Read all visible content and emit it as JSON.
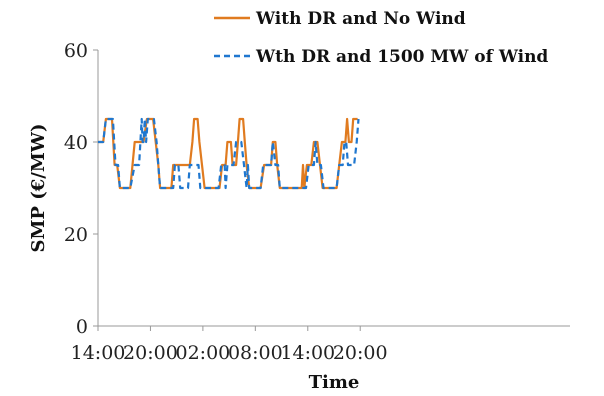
{
  "chart_data": {
    "type": "line",
    "title": "",
    "xlabel": "Time",
    "ylabel": "SMP (€/MW)",
    "xlim": [
      0,
      54
    ],
    "ylim": [
      0,
      60
    ],
    "x_ticks": [
      {
        "x": 0,
        "label": "14:00"
      },
      {
        "x": 6,
        "label": "20:00"
      },
      {
        "x": 12,
        "label": "02:00"
      },
      {
        "x": 18,
        "label": "08:00"
      },
      {
        "x": 24,
        "label": "14:00"
      },
      {
        "x": 30,
        "label": "20:00"
      }
    ],
    "y_ticks": [
      0,
      20,
      40,
      60
    ],
    "grid": false,
    "legend_position": "top",
    "series": [
      {
        "name": "With DR and No Wind",
        "color": "#E07B20",
        "style": "solid",
        "points": [
          [
            0,
            40
          ],
          [
            0.6,
            40
          ],
          [
            0.9,
            45
          ],
          [
            1.6,
            45
          ],
          [
            1.9,
            35
          ],
          [
            2.2,
            35
          ],
          [
            2.5,
            30
          ],
          [
            3.7,
            30
          ],
          [
            4.2,
            40
          ],
          [
            5.2,
            40
          ],
          [
            5.6,
            45
          ],
          [
            6.3,
            45
          ],
          [
            6.6,
            40
          ],
          [
            6.9,
            35
          ],
          [
            7.1,
            30
          ],
          [
            8.4,
            30
          ],
          [
            8.6,
            35
          ],
          [
            10.5,
            35
          ],
          [
            10.8,
            40
          ],
          [
            11.0,
            45
          ],
          [
            11.4,
            45
          ],
          [
            11.6,
            40
          ],
          [
            11.9,
            35
          ],
          [
            12.2,
            30
          ],
          [
            13.9,
            30
          ],
          [
            14.2,
            35
          ],
          [
            14.6,
            35
          ],
          [
            14.8,
            40
          ],
          [
            15.2,
            40
          ],
          [
            15.4,
            35
          ],
          [
            15.8,
            35
          ],
          [
            16.0,
            40
          ],
          [
            16.2,
            45
          ],
          [
            16.6,
            45
          ],
          [
            16.8,
            40
          ],
          [
            17.0,
            35
          ],
          [
            17.3,
            30
          ],
          [
            18.6,
            30
          ],
          [
            19.0,
            35
          ],
          [
            19.8,
            35
          ],
          [
            20.0,
            40
          ],
          [
            20.3,
            40
          ],
          [
            20.5,
            35
          ],
          [
            20.8,
            30
          ],
          [
            23.3,
            30
          ],
          [
            23.45,
            35
          ],
          [
            23.6,
            30
          ],
          [
            23.9,
            35
          ],
          [
            24.4,
            35
          ],
          [
            24.7,
            40
          ],
          [
            25.1,
            40
          ],
          [
            25.4,
            35
          ],
          [
            25.7,
            30
          ],
          [
            27.3,
            30
          ],
          [
            27.6,
            35
          ],
          [
            27.9,
            40
          ],
          [
            28.3,
            40
          ],
          [
            28.5,
            45
          ],
          [
            28.7,
            40
          ],
          [
            29.0,
            40
          ],
          [
            29.2,
            45
          ],
          [
            29.7,
            45
          ]
        ]
      },
      {
        "name": "Wth DR and 1500 MW of Wind",
        "color": "#1F77CF",
        "style": "dashed",
        "points": [
          [
            0,
            40
          ],
          [
            0.6,
            40
          ],
          [
            0.9,
            45
          ],
          [
            1.7,
            45
          ],
          [
            2.0,
            35
          ],
          [
            2.3,
            35
          ],
          [
            2.5,
            30
          ],
          [
            3.7,
            30
          ],
          [
            4.2,
            35
          ],
          [
            4.7,
            35
          ],
          [
            4.85,
            40
          ],
          [
            5.0,
            45
          ],
          [
            5.1,
            40
          ],
          [
            5.2,
            40
          ],
          [
            5.35,
            45
          ],
          [
            5.5,
            40
          ],
          [
            5.7,
            45
          ],
          [
            6.4,
            45
          ],
          [
            6.7,
            40
          ],
          [
            6.9,
            35
          ],
          [
            7.1,
            30
          ],
          [
            8.6,
            30
          ],
          [
            8.8,
            35
          ],
          [
            9.2,
            35
          ],
          [
            9.4,
            30
          ],
          [
            10.3,
            30
          ],
          [
            10.5,
            35
          ],
          [
            11.5,
            35
          ],
          [
            11.7,
            30
          ],
          [
            13.8,
            30
          ],
          [
            14.1,
            35
          ],
          [
            14.5,
            35
          ],
          [
            14.6,
            30
          ],
          [
            14.8,
            35
          ],
          [
            15.5,
            35
          ],
          [
            15.8,
            40
          ],
          [
            16.4,
            40
          ],
          [
            16.7,
            35
          ],
          [
            17.0,
            30
          ],
          [
            17.15,
            35
          ],
          [
            17.3,
            30
          ],
          [
            18.6,
            30
          ],
          [
            18.9,
            35
          ],
          [
            19.8,
            35
          ],
          [
            20.0,
            40
          ],
          [
            20.3,
            35
          ],
          [
            20.6,
            35
          ],
          [
            20.8,
            30
          ],
          [
            23.8,
            30
          ],
          [
            24.1,
            35
          ],
          [
            24.7,
            35
          ],
          [
            24.9,
            40
          ],
          [
            25.1,
            35
          ],
          [
            25.5,
            35
          ],
          [
            25.8,
            30
          ],
          [
            27.3,
            30
          ],
          [
            27.6,
            35
          ],
          [
            28.0,
            35
          ],
          [
            28.2,
            40
          ],
          [
            28.4,
            40
          ],
          [
            28.6,
            35
          ],
          [
            29.3,
            35
          ],
          [
            29.6,
            40
          ],
          [
            29.8,
            45
          ]
        ]
      }
    ]
  }
}
